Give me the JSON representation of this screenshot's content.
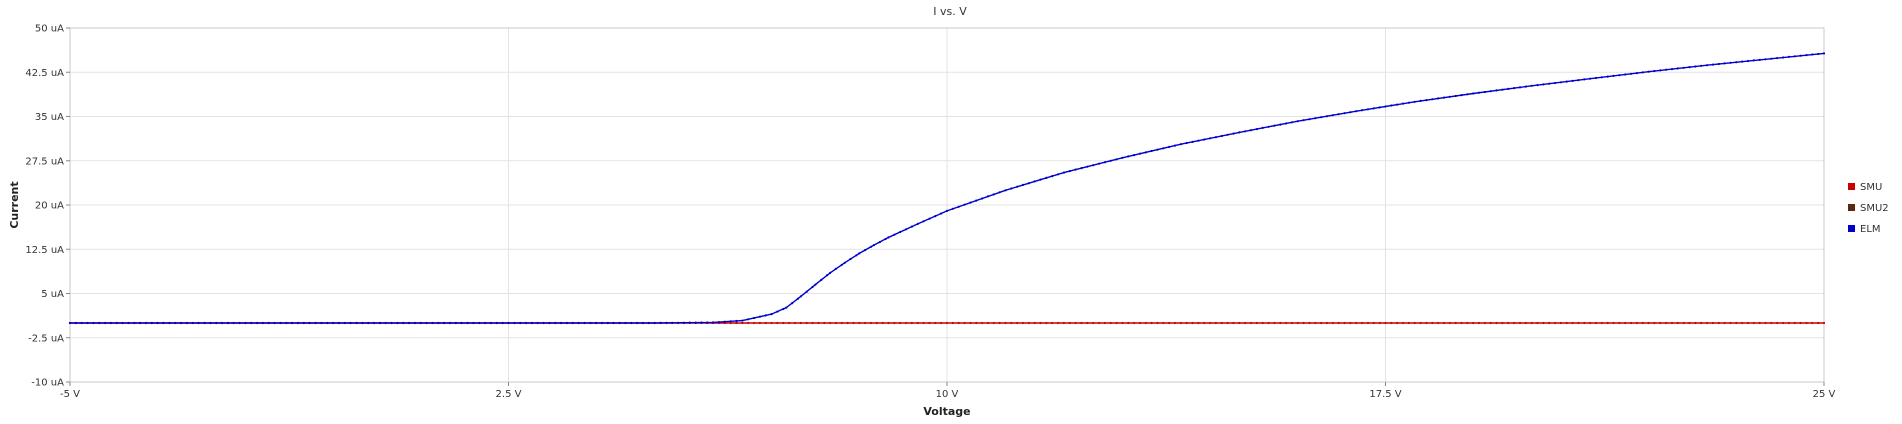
{
  "chart_data": {
    "type": "line",
    "title": "I vs. V",
    "xlabel": "Voltage",
    "ylabel": "Current",
    "xlim": [
      -5,
      25
    ],
    "ylim": [
      -10,
      50
    ],
    "xticks": [
      -5,
      2.5,
      10,
      17.5,
      25
    ],
    "xtick_labels": [
      "-5 V",
      "2.5 V",
      "10 V",
      "17.5 V",
      "25 V"
    ],
    "yticks": [
      -10,
      -2.5,
      5,
      12.5,
      20,
      27.5,
      35,
      42.5,
      50
    ],
    "ytick_labels": [
      "-10 uA",
      "-2.5 uA",
      "5 uA",
      "12.5 uA",
      "20 uA",
      "27.5 uA",
      "35 uA",
      "42.5 uA",
      "50 uA"
    ],
    "grid": true,
    "legend_position": "right",
    "series": [
      {
        "name": "SMU",
        "color": "#cc0000",
        "x": [
          -5,
          25
        ],
        "y": [
          0,
          0
        ]
      },
      {
        "name": "SMU2",
        "color": "#5a2a10",
        "x": [],
        "y": []
      },
      {
        "name": "ELM",
        "color": "#0000cc",
        "x": [
          -5,
          0,
          5,
          6,
          6.5,
          7,
          7.25,
          7.5,
          7.75,
          8,
          8.25,
          8.5,
          8.75,
          9,
          9.5,
          10,
          11,
          12,
          13,
          14,
          15,
          16,
          17,
          18,
          19,
          20,
          21,
          22,
          23,
          24,
          25
        ],
        "y": [
          0,
          0,
          0,
          0.1,
          0.4,
          1.5,
          2.6,
          4.5,
          6.5,
          8.5,
          10.2,
          11.8,
          13.2,
          14.5,
          16.8,
          19.0,
          22.5,
          25.5,
          28.0,
          30.3,
          32.3,
          34.2,
          35.9,
          37.5,
          38.9,
          40.2,
          41.4,
          42.6,
          43.7,
          44.7,
          45.7
        ]
      }
    ]
  }
}
